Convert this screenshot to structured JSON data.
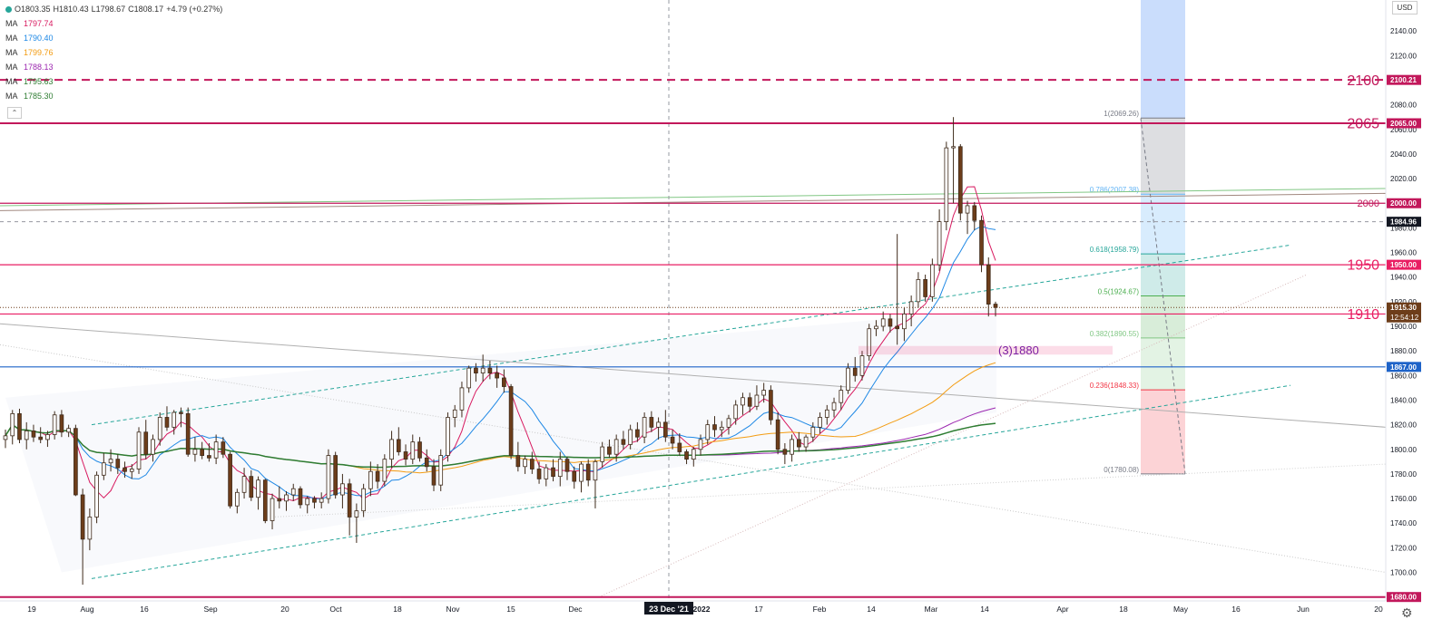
{
  "header": {
    "ohlc": {
      "open": "O1803.35",
      "high": "H1810.43",
      "low": "L1798.67",
      "close": "C1808.17",
      "change": "+4.79 (+0.27%)"
    },
    "ma_label": "MA",
    "mas": [
      {
        "value": "1797.74",
        "color": "#d81b60"
      },
      {
        "value": "1790.40",
        "color": "#1e88e5"
      },
      {
        "value": "1799.76",
        "color": "#f39c12"
      },
      {
        "value": "1788.13",
        "color": "#9c27b0"
      },
      {
        "value": "1795.63",
        "color": "#2e7d32"
      },
      {
        "value": "1785.30",
        "color": "#2e7d32"
      }
    ],
    "collapse_glyph": "⌃",
    "currency": "USD"
  },
  "toolbar": {
    "settings_icon": "gear-icon",
    "settings_glyph": "⚙"
  },
  "chart_data": {
    "type": "candlestick",
    "instrument": "Gold (USD)",
    "timeframe": "daily",
    "ylim": [
      1680,
      2160
    ],
    "y_ticks": [
      1700,
      1720,
      1740,
      1760,
      1780,
      1800,
      1820,
      1840,
      1860,
      1880,
      1900,
      1920,
      1940,
      1960,
      1980,
      2000,
      2020,
      2040,
      2060,
      2080,
      2100,
      2120,
      2140
    ],
    "x_ticks": [
      "19",
      "Aug",
      "16",
      "Sep",
      "20",
      "Oct",
      "18",
      "Nov",
      "15",
      "Dec",
      "23 Dec '21",
      "2022",
      "17",
      "Feb",
      "14",
      "Mar",
      "14",
      "Apr",
      "18",
      "May",
      "16",
      "Jun",
      "20"
    ],
    "crosshair_date": "23 Dec '21",
    "last_close": 1915.3,
    "countdown": "12:54:12",
    "levels": [
      {
        "name": "2100",
        "value": 2100.21,
        "label": "2100.21",
        "style": "dashed",
        "color": "#c2185b"
      },
      {
        "name": "2065",
        "value": 2065.0,
        "label": "2065.00",
        "style": "solid",
        "color": "#c2185b"
      },
      {
        "name": "2000",
        "value": 2000.0,
        "label": "2000.00",
        "style": "solid",
        "color": "#c2185b"
      },
      {
        "name": "",
        "value": 1984.96,
        "label": "1984.96",
        "style": "crosshair",
        "color": "#131722"
      },
      {
        "name": "1950",
        "value": 1950.0,
        "label": "1950.00",
        "style": "solid",
        "color": "#e91e63"
      },
      {
        "name": "1910",
        "value": 1910.0,
        "label": "1910.00",
        "style": "solid",
        "color": "#e91e63"
      },
      {
        "name": "",
        "value": 1867.0,
        "label": "1867.00",
        "style": "solid",
        "color": "#1e63c8"
      },
      {
        "name": "",
        "value": 1680.0,
        "label": "1680.00",
        "style": "solid",
        "color": "#c2185b"
      }
    ],
    "annotation": "(3)1880",
    "fibonacci": [
      {
        "ratio": "1",
        "value": 2069.26,
        "label": "1(2069.26)",
        "color": "#787b86"
      },
      {
        "ratio": "0.786",
        "value": 2007.38,
        "label": "0.786(2007.38)",
        "color": "#64b5f6"
      },
      {
        "ratio": "0.618",
        "value": 1958.79,
        "label": "0.618(1958.79)",
        "color": "#26a69a"
      },
      {
        "ratio": "0.5",
        "value": 1924.67,
        "label": "0.5(1924.67)",
        "color": "#4caf50"
      },
      {
        "ratio": "0.382",
        "value": 1890.55,
        "label": "0.382(1890.55)",
        "color": "#81c784"
      },
      {
        "ratio": "0.236",
        "value": 1848.33,
        "label": "0.236(1848.33)",
        "color": "#f23645"
      },
      {
        "ratio": "0",
        "value": 1780.08,
        "label": "0(1780.08)",
        "color": "#787b86"
      }
    ],
    "candles": [
      {
        "o": 1808,
        "h": 1816,
        "l": 1801,
        "c": 1811
      },
      {
        "o": 1811,
        "h": 1832,
        "l": 1804,
        "c": 1829
      },
      {
        "o": 1829,
        "h": 1833,
        "l": 1805,
        "c": 1808
      },
      {
        "o": 1808,
        "h": 1822,
        "l": 1800,
        "c": 1815
      },
      {
        "o": 1815,
        "h": 1820,
        "l": 1806,
        "c": 1810
      },
      {
        "o": 1810,
        "h": 1818,
        "l": 1805,
        "c": 1808
      },
      {
        "o": 1808,
        "h": 1815,
        "l": 1802,
        "c": 1812
      },
      {
        "o": 1812,
        "h": 1831,
        "l": 1808,
        "c": 1828
      },
      {
        "o": 1828,
        "h": 1832,
        "l": 1810,
        "c": 1814
      },
      {
        "o": 1814,
        "h": 1820,
        "l": 1810,
        "c": 1817
      },
      {
        "o": 1817,
        "h": 1820,
        "l": 1762,
        "c": 1763
      },
      {
        "o": 1763,
        "h": 1768,
        "l": 1690,
        "c": 1727
      },
      {
        "o": 1727,
        "h": 1752,
        "l": 1718,
        "c": 1745
      },
      {
        "o": 1745,
        "h": 1782,
        "l": 1740,
        "c": 1779
      },
      {
        "o": 1779,
        "h": 1797,
        "l": 1775,
        "c": 1789
      },
      {
        "o": 1789,
        "h": 1800,
        "l": 1782,
        "c": 1792
      },
      {
        "o": 1792,
        "h": 1796,
        "l": 1780,
        "c": 1785
      },
      {
        "o": 1785,
        "h": 1790,
        "l": 1777,
        "c": 1782
      },
      {
        "o": 1782,
        "h": 1788,
        "l": 1776,
        "c": 1784
      },
      {
        "o": 1784,
        "h": 1818,
        "l": 1780,
        "c": 1814
      },
      {
        "o": 1814,
        "h": 1824,
        "l": 1792,
        "c": 1796
      },
      {
        "o": 1796,
        "h": 1812,
        "l": 1790,
        "c": 1808
      },
      {
        "o": 1808,
        "h": 1830,
        "l": 1803,
        "c": 1826
      },
      {
        "o": 1826,
        "h": 1835,
        "l": 1815,
        "c": 1818
      },
      {
        "o": 1818,
        "h": 1832,
        "l": 1812,
        "c": 1830
      },
      {
        "o": 1830,
        "h": 1834,
        "l": 1818,
        "c": 1829
      },
      {
        "o": 1829,
        "h": 1834,
        "l": 1794,
        "c": 1796
      },
      {
        "o": 1796,
        "h": 1810,
        "l": 1790,
        "c": 1800
      },
      {
        "o": 1800,
        "h": 1806,
        "l": 1792,
        "c": 1795
      },
      {
        "o": 1795,
        "h": 1805,
        "l": 1790,
        "c": 1793
      },
      {
        "o": 1793,
        "h": 1812,
        "l": 1788,
        "c": 1806
      },
      {
        "o": 1806,
        "h": 1810,
        "l": 1793,
        "c": 1796
      },
      {
        "o": 1796,
        "h": 1798,
        "l": 1752,
        "c": 1754
      },
      {
        "o": 1754,
        "h": 1768,
        "l": 1748,
        "c": 1765
      },
      {
        "o": 1765,
        "h": 1785,
        "l": 1760,
        "c": 1778
      },
      {
        "o": 1778,
        "h": 1783,
        "l": 1758,
        "c": 1761
      },
      {
        "o": 1761,
        "h": 1778,
        "l": 1751,
        "c": 1775
      },
      {
        "o": 1775,
        "h": 1776,
        "l": 1740,
        "c": 1742
      },
      {
        "o": 1742,
        "h": 1764,
        "l": 1735,
        "c": 1760
      },
      {
        "o": 1760,
        "h": 1770,
        "l": 1752,
        "c": 1758
      },
      {
        "o": 1758,
        "h": 1766,
        "l": 1750,
        "c": 1763
      },
      {
        "o": 1763,
        "h": 1772,
        "l": 1758,
        "c": 1768
      },
      {
        "o": 1768,
        "h": 1770,
        "l": 1752,
        "c": 1755
      },
      {
        "o": 1755,
        "h": 1762,
        "l": 1748,
        "c": 1760
      },
      {
        "o": 1760,
        "h": 1762,
        "l": 1752,
        "c": 1757
      },
      {
        "o": 1757,
        "h": 1765,
        "l": 1752,
        "c": 1760
      },
      {
        "o": 1760,
        "h": 1800,
        "l": 1756,
        "c": 1795
      },
      {
        "o": 1795,
        "h": 1798,
        "l": 1760,
        "c": 1763
      },
      {
        "o": 1763,
        "h": 1780,
        "l": 1752,
        "c": 1772
      },
      {
        "o": 1772,
        "h": 1776,
        "l": 1730,
        "c": 1745
      },
      {
        "o": 1745,
        "h": 1756,
        "l": 1724,
        "c": 1750
      },
      {
        "o": 1750,
        "h": 1772,
        "l": 1745,
        "c": 1768
      },
      {
        "o": 1768,
        "h": 1790,
        "l": 1762,
        "c": 1782
      },
      {
        "o": 1782,
        "h": 1788,
        "l": 1768,
        "c": 1774
      },
      {
        "o": 1774,
        "h": 1796,
        "l": 1770,
        "c": 1792
      },
      {
        "o": 1792,
        "h": 1815,
        "l": 1785,
        "c": 1808
      },
      {
        "o": 1808,
        "h": 1818,
        "l": 1795,
        "c": 1798
      },
      {
        "o": 1798,
        "h": 1804,
        "l": 1787,
        "c": 1792
      },
      {
        "o": 1792,
        "h": 1812,
        "l": 1788,
        "c": 1806
      },
      {
        "o": 1806,
        "h": 1810,
        "l": 1790,
        "c": 1793
      },
      {
        "o": 1793,
        "h": 1800,
        "l": 1782,
        "c": 1786
      },
      {
        "o": 1786,
        "h": 1792,
        "l": 1766,
        "c": 1771
      },
      {
        "o": 1771,
        "h": 1800,
        "l": 1766,
        "c": 1795
      },
      {
        "o": 1795,
        "h": 1830,
        "l": 1790,
        "c": 1826
      },
      {
        "o": 1826,
        "h": 1836,
        "l": 1818,
        "c": 1832
      },
      {
        "o": 1832,
        "h": 1855,
        "l": 1826,
        "c": 1850
      },
      {
        "o": 1850,
        "h": 1868,
        "l": 1846,
        "c": 1866
      },
      {
        "o": 1866,
        "h": 1870,
        "l": 1855,
        "c": 1862
      },
      {
        "o": 1862,
        "h": 1877,
        "l": 1855,
        "c": 1866
      },
      {
        "o": 1866,
        "h": 1872,
        "l": 1857,
        "c": 1862
      },
      {
        "o": 1862,
        "h": 1868,
        "l": 1850,
        "c": 1858
      },
      {
        "o": 1858,
        "h": 1865,
        "l": 1846,
        "c": 1851
      },
      {
        "o": 1851,
        "h": 1853,
        "l": 1792,
        "c": 1795
      },
      {
        "o": 1795,
        "h": 1806,
        "l": 1782,
        "c": 1786
      },
      {
        "o": 1786,
        "h": 1795,
        "l": 1780,
        "c": 1792
      },
      {
        "o": 1792,
        "h": 1798,
        "l": 1780,
        "c": 1784
      },
      {
        "o": 1784,
        "h": 1790,
        "l": 1772,
        "c": 1776
      },
      {
        "o": 1776,
        "h": 1788,
        "l": 1770,
        "c": 1785
      },
      {
        "o": 1785,
        "h": 1792,
        "l": 1774,
        "c": 1778
      },
      {
        "o": 1778,
        "h": 1798,
        "l": 1770,
        "c": 1792
      },
      {
        "o": 1792,
        "h": 1794,
        "l": 1775,
        "c": 1782
      },
      {
        "o": 1782,
        "h": 1786,
        "l": 1768,
        "c": 1774
      },
      {
        "o": 1774,
        "h": 1790,
        "l": 1765,
        "c": 1788
      },
      {
        "o": 1788,
        "h": 1792,
        "l": 1770,
        "c": 1775
      },
      {
        "o": 1775,
        "h": 1792,
        "l": 1752,
        "c": 1790
      },
      {
        "o": 1790,
        "h": 1806,
        "l": 1785,
        "c": 1802
      },
      {
        "o": 1802,
        "h": 1808,
        "l": 1793,
        "c": 1796
      },
      {
        "o": 1796,
        "h": 1812,
        "l": 1790,
        "c": 1808
      },
      {
        "o": 1808,
        "h": 1815,
        "l": 1800,
        "c": 1804
      },
      {
        "o": 1804,
        "h": 1820,
        "l": 1800,
        "c": 1816
      },
      {
        "o": 1816,
        "h": 1822,
        "l": 1806,
        "c": 1810
      },
      {
        "o": 1810,
        "h": 1830,
        "l": 1805,
        "c": 1826
      },
      {
        "o": 1826,
        "h": 1831,
        "l": 1814,
        "c": 1818
      },
      {
        "o": 1818,
        "h": 1826,
        "l": 1808,
        "c": 1822
      },
      {
        "o": 1822,
        "h": 1832,
        "l": 1806,
        "c": 1810
      },
      {
        "o": 1810,
        "h": 1816,
        "l": 1800,
        "c": 1805
      },
      {
        "o": 1805,
        "h": 1813,
        "l": 1795,
        "c": 1798
      },
      {
        "o": 1798,
        "h": 1800,
        "l": 1788,
        "c": 1792
      },
      {
        "o": 1792,
        "h": 1802,
        "l": 1786,
        "c": 1800
      },
      {
        "o": 1800,
        "h": 1812,
        "l": 1795,
        "c": 1808
      },
      {
        "o": 1808,
        "h": 1824,
        "l": 1804,
        "c": 1820
      },
      {
        "o": 1820,
        "h": 1827,
        "l": 1810,
        "c": 1816
      },
      {
        "o": 1816,
        "h": 1823,
        "l": 1810,
        "c": 1818
      },
      {
        "o": 1818,
        "h": 1828,
        "l": 1812,
        "c": 1825
      },
      {
        "o": 1825,
        "h": 1840,
        "l": 1820,
        "c": 1836
      },
      {
        "o": 1836,
        "h": 1846,
        "l": 1828,
        "c": 1842
      },
      {
        "o": 1842,
        "h": 1846,
        "l": 1830,
        "c": 1835
      },
      {
        "o": 1835,
        "h": 1852,
        "l": 1832,
        "c": 1844
      },
      {
        "o": 1844,
        "h": 1854,
        "l": 1838,
        "c": 1848
      },
      {
        "o": 1848,
        "h": 1852,
        "l": 1820,
        "c": 1824
      },
      {
        "o": 1824,
        "h": 1830,
        "l": 1796,
        "c": 1800
      },
      {
        "o": 1800,
        "h": 1805,
        "l": 1788,
        "c": 1796
      },
      {
        "o": 1796,
        "h": 1812,
        "l": 1790,
        "c": 1808
      },
      {
        "o": 1808,
        "h": 1814,
        "l": 1798,
        "c": 1802
      },
      {
        "o": 1802,
        "h": 1812,
        "l": 1798,
        "c": 1810
      },
      {
        "o": 1810,
        "h": 1822,
        "l": 1806,
        "c": 1818
      },
      {
        "o": 1818,
        "h": 1830,
        "l": 1813,
        "c": 1826
      },
      {
        "o": 1826,
        "h": 1836,
        "l": 1820,
        "c": 1832
      },
      {
        "o": 1832,
        "h": 1842,
        "l": 1826,
        "c": 1838
      },
      {
        "o": 1838,
        "h": 1852,
        "l": 1832,
        "c": 1848
      },
      {
        "o": 1848,
        "h": 1870,
        "l": 1845,
        "c": 1866
      },
      {
        "o": 1866,
        "h": 1875,
        "l": 1855,
        "c": 1860
      },
      {
        "o": 1860,
        "h": 1880,
        "l": 1856,
        "c": 1876
      },
      {
        "o": 1876,
        "h": 1902,
        "l": 1872,
        "c": 1898
      },
      {
        "o": 1898,
        "h": 1905,
        "l": 1892,
        "c": 1900
      },
      {
        "o": 1900,
        "h": 1912,
        "l": 1896,
        "c": 1906
      },
      {
        "o": 1906,
        "h": 1910,
        "l": 1895,
        "c": 1900
      },
      {
        "o": 1900,
        "h": 1975,
        "l": 1885,
        "c": 1898
      },
      {
        "o": 1898,
        "h": 1915,
        "l": 1888,
        "c": 1910
      },
      {
        "o": 1910,
        "h": 1925,
        "l": 1900,
        "c": 1920
      },
      {
        "o": 1920,
        "h": 1944,
        "l": 1915,
        "c": 1938
      },
      {
        "o": 1938,
        "h": 1942,
        "l": 1920,
        "c": 1924
      },
      {
        "o": 1924,
        "h": 1955,
        "l": 1920,
        "c": 1950
      },
      {
        "o": 1950,
        "h": 1995,
        "l": 1945,
        "c": 1985
      },
      {
        "o": 1985,
        "h": 2050,
        "l": 1978,
        "c": 2045
      },
      {
        "o": 2045,
        "h": 2070,
        "l": 2000,
        "c": 2046
      },
      {
        "o": 2046,
        "h": 2048,
        "l": 1986,
        "c": 1992
      },
      {
        "o": 1992,
        "h": 2002,
        "l": 1975,
        "c": 1998
      },
      {
        "o": 1998,
        "h": 2001,
        "l": 1978,
        "c": 1986
      },
      {
        "o": 1986,
        "h": 1990,
        "l": 1944,
        "c": 1950
      },
      {
        "o": 1950,
        "h": 1956,
        "l": 1908,
        "c": 1918
      },
      {
        "o": 1918,
        "h": 1920,
        "l": 1908,
        "c": 1915.3
      }
    ],
    "series": [
      {
        "name": "MA",
        "value_label": "1797.74",
        "color": "#d81b60"
      },
      {
        "name": "MA",
        "value_label": "1790.40",
        "color": "#1e88e5"
      },
      {
        "name": "MA",
        "value_label": "1799.76",
        "color": "#f39c12"
      },
      {
        "name": "MA",
        "value_label": "1788.13",
        "color": "#9c27b0"
      },
      {
        "name": "MA",
        "value_label": "1795.63",
        "color": "#2e7d32"
      }
    ],
    "grid": false
  }
}
